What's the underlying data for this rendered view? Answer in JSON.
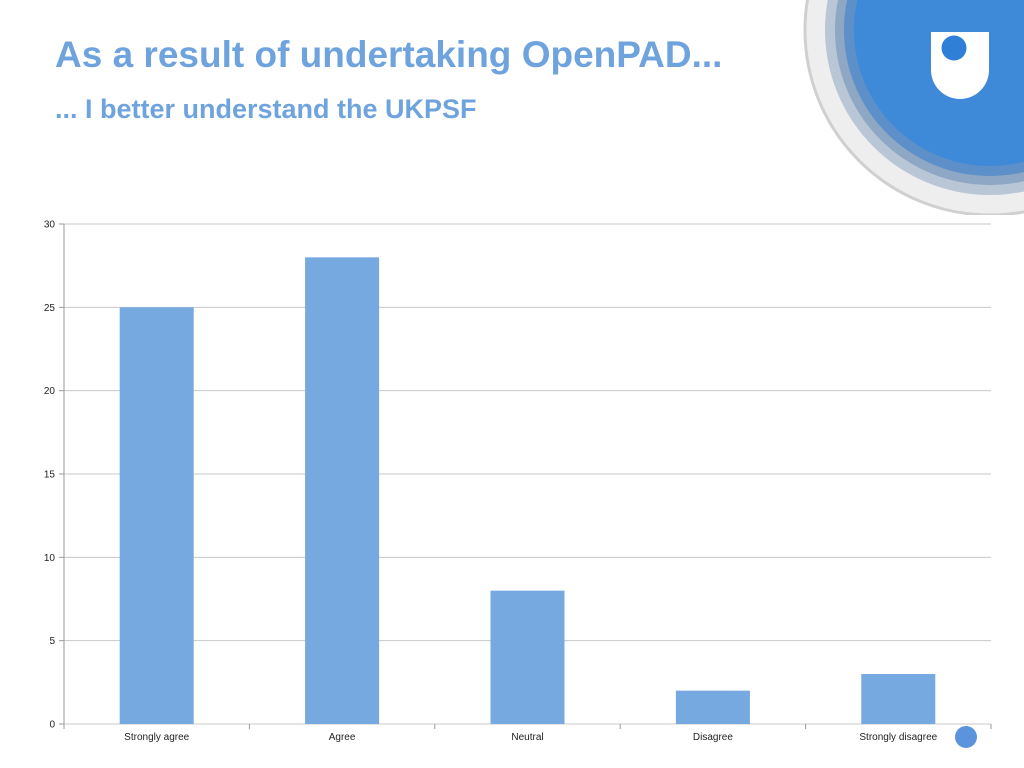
{
  "slide": {
    "title": "As a result of undertaking OpenPAD...",
    "subtitle": "... I better understand the UKPSF"
  },
  "colors": {
    "title": "#6fa3de",
    "bar": "#77a9e1",
    "grid": "#c8c8c8",
    "logo_blue": "#3e8ad8"
  },
  "icons": {
    "logo": "open-university-logo-icon",
    "nav": "navigation-dot-icon"
  },
  "chart_data": {
    "type": "bar",
    "categories": [
      "Strongly agree",
      "Agree",
      "Neutral",
      "Disagree",
      "Strongly disagree"
    ],
    "values": [
      25,
      28,
      8,
      2,
      3
    ],
    "title": "",
    "xlabel": "",
    "ylabel": "",
    "ylim": [
      0,
      30
    ],
    "yticks": [
      0,
      5,
      10,
      15,
      20,
      25,
      30
    ],
    "grid": true,
    "legend": "none"
  }
}
